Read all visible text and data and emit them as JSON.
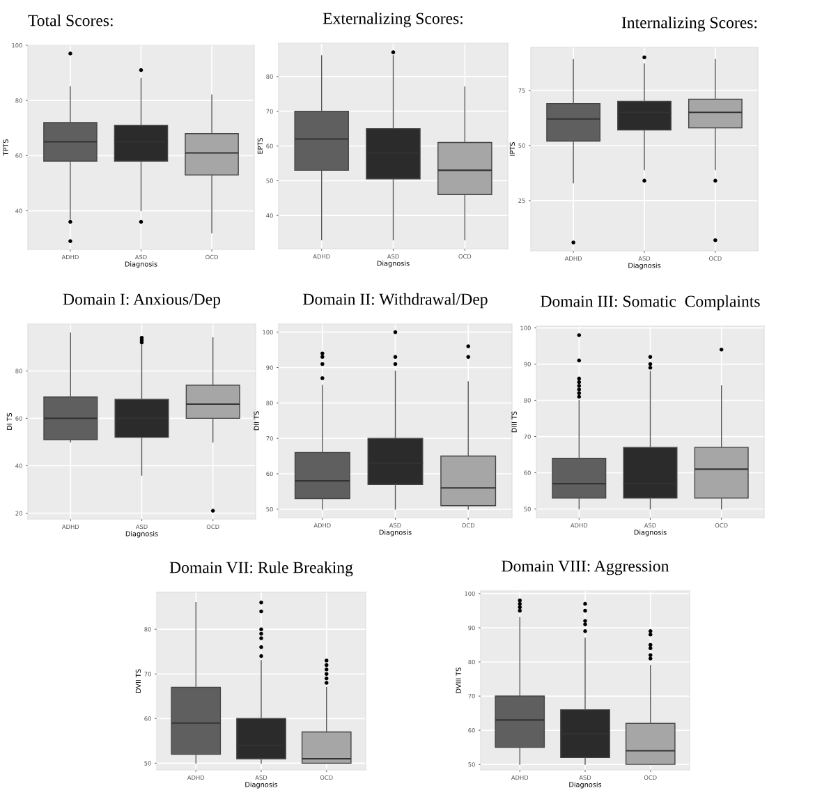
{
  "chart_data": [
    {
      "type": "box",
      "title": "Total Scores:",
      "xlabel": "Diagnosis",
      "ylabel": "TPTS",
      "categories": [
        "ADHD",
        "ASD",
        "OCD"
      ],
      "colors": [
        "#5f5f5f",
        "#2b2b2b",
        "#a6a6a6"
      ],
      "ylim": [
        26,
        100
      ],
      "yticks": [
        40,
        60,
        80,
        100
      ],
      "grid": true,
      "boxes": [
        {
          "low": 37,
          "q1": 58,
          "median": 65,
          "q3": 72,
          "high": 85,
          "outliers": [
            97,
            36,
            29
          ]
        },
        {
          "low": 40,
          "q1": 58,
          "median": 65,
          "q3": 71,
          "high": 88,
          "outliers": [
            91,
            36
          ]
        },
        {
          "low": 32,
          "q1": 53,
          "median": 61,
          "q3": 68,
          "high": 82
        }
      ]
    },
    {
      "type": "box",
      "title": "Externalizing Scores:",
      "xlabel": "Diagnosis",
      "ylabel": "EPTS",
      "categories": [
        "ADHD",
        "ASD",
        "OCD"
      ],
      "colors": [
        "#5f5f5f",
        "#2b2b2b",
        "#a6a6a6"
      ],
      "ylim": [
        30.4,
        89.6
      ],
      "yticks": [
        40,
        50,
        60,
        70,
        80
      ],
      "grid": true,
      "boxes": [
        {
          "low": 33,
          "q1": 53,
          "median": 62,
          "q3": 70,
          "high": 86
        },
        {
          "low": 33,
          "q1": 50.5,
          "median": 58,
          "q3": 65,
          "high": 86,
          "outliers": [
            87
          ]
        },
        {
          "low": 33,
          "q1": 46,
          "median": 53,
          "q3": 61,
          "high": 77
        }
      ]
    },
    {
      "type": "box",
      "title": "Internalizing Scores:",
      "xlabel": "Diagnosis",
      "ylabel": "IPTS",
      "categories": [
        "ADHD",
        "ASD",
        "OCD"
      ],
      "colors": [
        "#5f5f5f",
        "#2b2b2b",
        "#a6a6a6"
      ],
      "ylim": [
        2.2,
        94.5
      ],
      "yticks": [
        25,
        50,
        75
      ],
      "grid": true,
      "boxes": [
        {
          "low": 33,
          "q1": 52,
          "median": 62,
          "q3": 69,
          "high": 89,
          "outliers": [
            6
          ]
        },
        {
          "low": 39,
          "q1": 57,
          "median": 65,
          "q3": 70,
          "high": 87,
          "outliers": [
            90,
            34
          ]
        },
        {
          "low": 39,
          "q1": 58,
          "median": 65,
          "q3": 71,
          "high": 89,
          "outliers": [
            34,
            7
          ]
        }
      ]
    },
    {
      "type": "box",
      "title": "Domain I: Anxious/Dep",
      "xlabel": "Diagnosis",
      "ylabel": "DI TS",
      "categories": [
        "ADHD",
        "ASD",
        "OCD"
      ],
      "colors": [
        "#5f5f5f",
        "#2b2b2b",
        "#a6a6a6"
      ],
      "ylim": [
        17.5,
        99.8
      ],
      "yticks": [
        20,
        40,
        60,
        80
      ],
      "grid": true,
      "boxes": [
        {
          "low": 50,
          "q1": 51,
          "median": 60,
          "q3": 69,
          "high": 96
        },
        {
          "low": 36,
          "q1": 52,
          "median": 60,
          "q3": 68,
          "high": 91,
          "outliers": [
            92,
            93,
            94
          ]
        },
        {
          "low": 50,
          "q1": 60,
          "median": 66,
          "q3": 74,
          "high": 94,
          "outliers": [
            21
          ]
        }
      ]
    },
    {
      "type": "box",
      "title": "Domain II: Withdrawal/Dep",
      "xlabel": "Diagnosis",
      "ylabel": "DII TS",
      "categories": [
        "ADHD",
        "ASD",
        "OCD"
      ],
      "colors": [
        "#5f5f5f",
        "#2b2b2b",
        "#a6a6a6"
      ],
      "ylim": [
        47.6,
        102.3
      ],
      "yticks": [
        50,
        60,
        70,
        80,
        90,
        100
      ],
      "grid": true,
      "boxes": [
        {
          "low": 50,
          "q1": 53,
          "median": 58,
          "q3": 66,
          "high": 85,
          "outliers": [
            94,
            93,
            91,
            87
          ]
        },
        {
          "low": 50,
          "q1": 57,
          "median": 63,
          "q3": 70,
          "high": 89,
          "outliers": [
            100,
            93,
            91
          ]
        },
        {
          "low": 50,
          "q1": 51,
          "median": 56,
          "q3": 65,
          "high": 86,
          "outliers": [
            96,
            93
          ]
        }
      ]
    },
    {
      "type": "box",
      "title": "Domain III: Somatic  Complaints",
      "xlabel": "Diagnosis",
      "ylabel": "DIII TS",
      "categories": [
        "ADHD",
        "ASD",
        "OCD"
      ],
      "colors": [
        "#5f5f5f",
        "#2b2b2b",
        "#a6a6a6"
      ],
      "ylim": [
        47.6,
        100.5
      ],
      "yticks": [
        50,
        60,
        70,
        80,
        90,
        100
      ],
      "grid": true,
      "boxes": [
        {
          "low": 50,
          "q1": 53,
          "median": 57,
          "q3": 64,
          "high": 80,
          "outliers": [
            98,
            91,
            86,
            85,
            84,
            83,
            82,
            81
          ]
        },
        {
          "low": 50,
          "q1": 53,
          "median": 57,
          "q3": 67,
          "high": 88,
          "outliers": [
            92,
            90,
            89
          ]
        },
        {
          "low": 50,
          "q1": 53,
          "median": 61,
          "q3": 67,
          "high": 84,
          "outliers": [
            94
          ]
        }
      ]
    },
    {
      "type": "box",
      "title": "Domain VII: Rule Breaking",
      "xlabel": "Diagnosis",
      "ylabel": "DVII TS",
      "categories": [
        "ADHD",
        "ASD",
        "OCD"
      ],
      "colors": [
        "#5f5f5f",
        "#2b2b2b",
        "#a6a6a6"
      ],
      "ylim": [
        48.5,
        88.3
      ],
      "yticks": [
        50,
        60,
        70,
        80
      ],
      "grid": true,
      "boxes": [
        {
          "low": 50,
          "q1": 52,
          "median": 59,
          "q3": 67,
          "high": 86
        },
        {
          "low": 50,
          "q1": 51,
          "median": 54,
          "q3": 60,
          "high": 73,
          "outliers": [
            86,
            84,
            80,
            79,
            78,
            76,
            74
          ]
        },
        {
          "low": 50,
          "q1": 50,
          "median": 51,
          "q3": 57,
          "high": 67,
          "outliers": [
            73,
            72,
            71,
            70,
            69,
            68
          ]
        }
      ]
    },
    {
      "type": "box",
      "title": "Domain VIII: Aggression",
      "xlabel": "Diagnosis",
      "ylabel": "DVIII TS",
      "categories": [
        "ADHD",
        "ASD",
        "OCD"
      ],
      "colors": [
        "#5f5f5f",
        "#2b2b2b",
        "#a6a6a6"
      ],
      "ylim": [
        48.4,
        100.8
      ],
      "yticks": [
        50,
        60,
        70,
        80,
        90,
        100
      ],
      "grid": true,
      "boxes": [
        {
          "low": 50,
          "q1": 55,
          "median": 63,
          "q3": 70,
          "high": 93,
          "outliers": [
            98,
            97,
            96,
            95
          ]
        },
        {
          "low": 50,
          "q1": 52,
          "median": 59,
          "q3": 66,
          "high": 87,
          "outliers": [
            97,
            95,
            92,
            91,
            89
          ]
        },
        {
          "low": 50,
          "q1": 50,
          "median": 54,
          "q3": 62,
          "high": 79,
          "outliers": [
            89,
            88,
            85,
            84,
            82,
            81
          ]
        }
      ]
    }
  ]
}
